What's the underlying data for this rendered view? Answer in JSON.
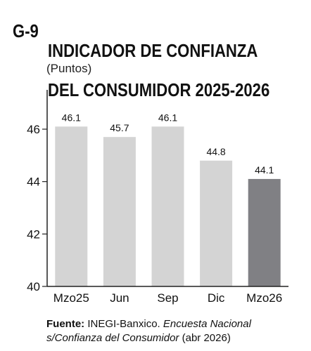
{
  "header": {
    "code": "G-9",
    "title_line1": "INDICADOR DE CONFIANZA",
    "title_line2": "DEL CONSUMIDOR 2025-2026",
    "unit": "(Puntos)"
  },
  "source": {
    "label": "Fuente:",
    "org": " INEGI-Banxico. ",
    "publication": "Encuesta Nacional s/Confianza del Consumidor",
    "date": " (abr 2026)"
  },
  "colors": {
    "bar_light": "#d4d4d4",
    "bar_dark": "#808084",
    "axis": "#222222"
  },
  "chart_data": {
    "type": "bar",
    "title": "INDICADOR DE CONFIANZA DEL CONSUMIDOR 2025-2026",
    "ylabel": "(Puntos)",
    "categories": [
      "Mzo25",
      "Jun",
      "Sep",
      "Dic",
      "Mzo26"
    ],
    "values": [
      46.1,
      45.7,
      46.1,
      44.8,
      44.1
    ],
    "value_labels": [
      "46.1",
      "45.7",
      "46.1",
      "44.8",
      "44.1"
    ],
    "highlight_index": 4,
    "ylim": [
      40,
      47.5
    ],
    "yticks": [
      40,
      42,
      44,
      46
    ],
    "grid": false,
    "legend": "none"
  }
}
